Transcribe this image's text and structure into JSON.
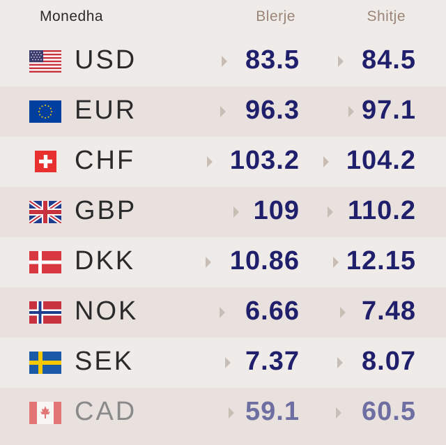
{
  "header": {
    "currency_label": "Monedha",
    "buy_label": "Blerje",
    "sell_label": "Shitje"
  },
  "rows": [
    {
      "code": "USD",
      "flag_icon": "usa-flag-icon",
      "buy": "83.5",
      "sell": "84.5"
    },
    {
      "code": "EUR",
      "flag_icon": "eu-flag-icon",
      "buy": "96.3",
      "sell": "97.1"
    },
    {
      "code": "CHF",
      "flag_icon": "switzerland-flag-icon",
      "buy": "103.2",
      "sell": "104.2"
    },
    {
      "code": "GBP",
      "flag_icon": "uk-flag-icon",
      "buy": "109",
      "sell": "110.2"
    },
    {
      "code": "DKK",
      "flag_icon": "denmark-flag-icon",
      "buy": "10.86",
      "sell": "12.15"
    },
    {
      "code": "NOK",
      "flag_icon": "norway-flag-icon",
      "buy": "6.66",
      "sell": "7.48"
    },
    {
      "code": "SEK",
      "flag_icon": "sweden-flag-icon",
      "buy": "7.37",
      "sell": "8.07"
    },
    {
      "code": "CAD",
      "flag_icon": "canada-flag-icon",
      "buy": "59.1",
      "sell": "60.5"
    }
  ],
  "colors": {
    "value": "#1f1f6c",
    "header_muted": "#9b8578",
    "row_light": "#efebe8",
    "row_dark": "#e8e1dd"
  }
}
